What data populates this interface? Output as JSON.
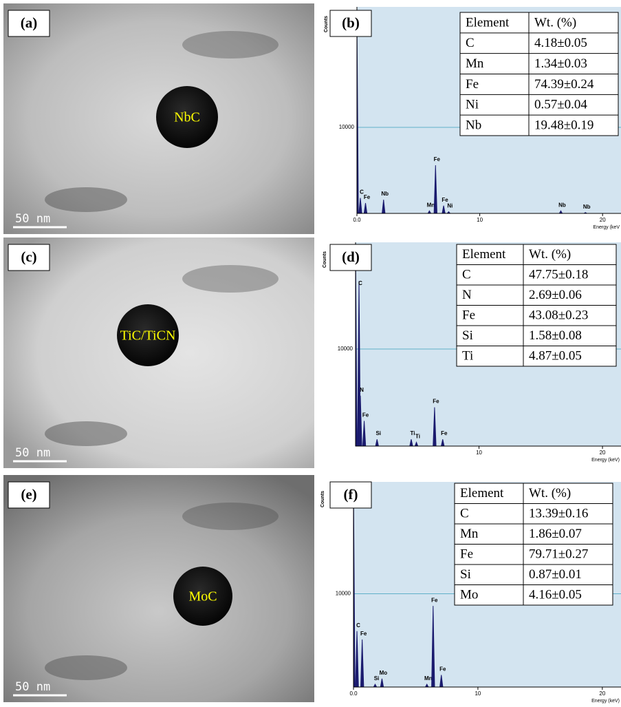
{
  "images": [
    {
      "panel": "(a)",
      "particle": "NbC",
      "scale_bar": "50 nm"
    },
    {
      "panel": "(c)",
      "particle": "TiC/TiCN",
      "scale_bar": "50 nm"
    },
    {
      "panel": "(e)",
      "particle": "MoC",
      "scale_bar": "50 nm"
    }
  ],
  "chart_data": [
    {
      "type": "spectrum",
      "panel": "(b)",
      "ylabel": "Counts",
      "xlabel": "Energy (keV",
      "xlim": [
        0,
        21.5
      ],
      "ylim": [
        0,
        24000
      ],
      "xticks": [
        {
          "value": 0,
          "label": "0.0"
        },
        10,
        20
      ],
      "yticks": [
        10000
      ],
      "x": [
        0.0,
        0.28,
        0.7,
        2.17,
        5.9,
        6.4,
        7.06,
        7.47,
        16.6,
        18.6
      ],
      "values": [
        23000,
        1800,
        1200,
        1600,
        300,
        5600,
        900,
        200,
        300,
        100
      ],
      "labels": [
        null,
        "C",
        "Fe",
        "Nb",
        "Mn",
        "Fe",
        "Fe",
        "Ni",
        "Nb",
        "Nb"
      ],
      "color": "#1a1a6e",
      "table": {
        "header": [
          "Element",
          "Wt. (%)"
        ],
        "rows": [
          [
            "C",
            "4.18±0.05"
          ],
          [
            "Mn",
            "1.34±0.03"
          ],
          [
            "Fe",
            "74.39±0.24"
          ],
          [
            "Ni",
            "0.57±0.04"
          ],
          [
            "Nb",
            "19.48±0.19"
          ]
        ]
      }
    },
    {
      "type": "spectrum",
      "panel": "(d)",
      "ylabel": "Counts",
      "xlabel": "Energy (keV)",
      "xlim": [
        0,
        21.5
      ],
      "ylim": [
        0,
        21000
      ],
      "xticks": [
        10,
        20
      ],
      "yticks": [
        10000
      ],
      "x": [
        0.0,
        0.28,
        0.39,
        0.7,
        1.74,
        4.51,
        4.93,
        6.4,
        7.06
      ],
      "values": [
        21000,
        17000,
        5200,
        2600,
        700,
        700,
        400,
        4000,
        700
      ],
      "labels": [
        null,
        "C",
        "N",
        "Fe",
        "Si",
        "Ti",
        "Ti",
        "Fe",
        "Fe"
      ],
      "color": "#1a1a6e",
      "table": {
        "header": [
          "Element",
          "Wt. (%)"
        ],
        "rows": [
          [
            "C",
            "47.75±0.18"
          ],
          [
            "N",
            "2.69±0.06"
          ],
          [
            "Fe",
            "43.08±0.23"
          ],
          [
            "Si",
            "1.58±0.08"
          ],
          [
            "Ti",
            "4.87±0.05"
          ]
        ]
      }
    },
    {
      "type": "spectrum",
      "panel": "(f)",
      "ylabel": "Counts",
      "xlabel": "Energy (keV)",
      "xlim": [
        0,
        21.5
      ],
      "ylim": [
        0,
        22000
      ],
      "xticks": [
        {
          "value": 0,
          "label": "0.0"
        },
        10,
        20
      ],
      "yticks": [
        10000
      ],
      "x": [
        0.0,
        0.28,
        0.7,
        1.74,
        2.29,
        5.9,
        6.4,
        7.06
      ],
      "values": [
        22000,
        6000,
        5100,
        300,
        900,
        300,
        8700,
        1300
      ],
      "labels": [
        null,
        "C",
        "Fe",
        "Si",
        "Mo",
        "Mn",
        "Fe",
        "Fe"
      ],
      "color": "#1a1a6e",
      "table": {
        "header": [
          "Element",
          "Wt. (%)"
        ],
        "rows": [
          [
            "C",
            "13.39±0.16"
          ],
          [
            "Mn",
            "1.86±0.07"
          ],
          [
            "Fe",
            "79.71±0.27"
          ],
          [
            "Si",
            "0.87±0.01"
          ],
          [
            "Mo",
            "4.16±0.05"
          ]
        ]
      }
    }
  ]
}
